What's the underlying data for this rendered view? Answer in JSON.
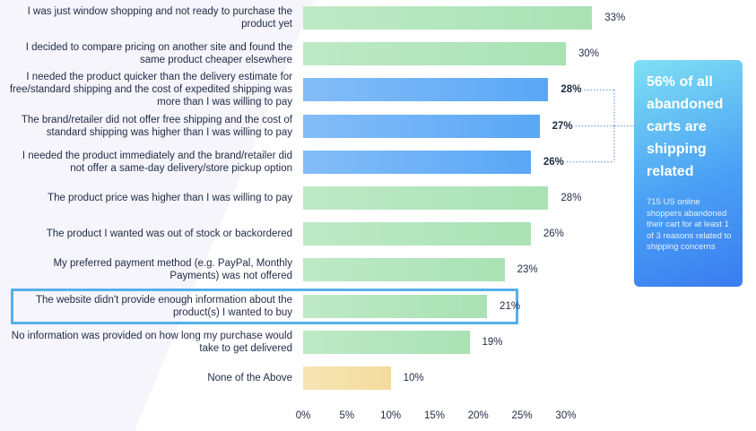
{
  "chart_data": {
    "type": "bar",
    "orientation": "horizontal",
    "categories": [
      "I was just window shopping and not ready to purchase the product yet",
      "I decided to compare pricing on another site and found the same product cheaper elsewhere",
      "I needed the product quicker than the delivery estimate for free/standard shipping and the cost of expedited shipping was more than I was willing to pay",
      "The brand/retailer did not offer free shipping and the cost of standard shipping was higher than I was willing to pay",
      "I needed the product immediately and the brand/retailer did not offer a same-day delivery/store pickup option",
      "The product price was higher than I was willing to pay",
      "The product I wanted was out of stock or backordered",
      "My preferred payment method (e.g. PayPal, Monthly Payments) was not offered",
      "The website didn't provide enough information about the product(s) I wanted to buy",
      "No information was provided on how long my purchase would take to get delivered",
      "None of the Above"
    ],
    "values": [
      33,
      30,
      28,
      27,
      26,
      28,
      26,
      23,
      21,
      19,
      10
    ],
    "value_labels": [
      "33%",
      "30%",
      "28%",
      "27%",
      "26%",
      "28%",
      "26%",
      "23%",
      "21%",
      "19%",
      "10%"
    ],
    "colors": [
      "#a9e2b4",
      "#a9e2b4",
      "#5aa7f6",
      "#5aa7f6",
      "#5aa7f6",
      "#a9e2b4",
      "#a9e2b4",
      "#a9e2b4",
      "#a9e2b4",
      "#a9e2b4",
      "#f3dc9c"
    ],
    "bold_labels": [
      2,
      3,
      4
    ],
    "highlight": 8,
    "xlim": [
      0,
      34
    ],
    "xticks": [
      {
        "value": 0,
        "label": "0%"
      },
      {
        "value": 5,
        "label": "5%"
      },
      {
        "value": 10,
        "label": "10%"
      },
      {
        "value": 15,
        "label": "15%"
      },
      {
        "value": 20,
        "label": "20%"
      },
      {
        "value": 25,
        "label": "25%"
      },
      {
        "value": 30,
        "label": "30%"
      }
    ],
    "annotations": [
      "56% of all abandoned carts are shipping related",
      "715 US online shoppers abandoned their cart for at least 1 of 3 reasons related to shipping concerns"
    ]
  }
}
